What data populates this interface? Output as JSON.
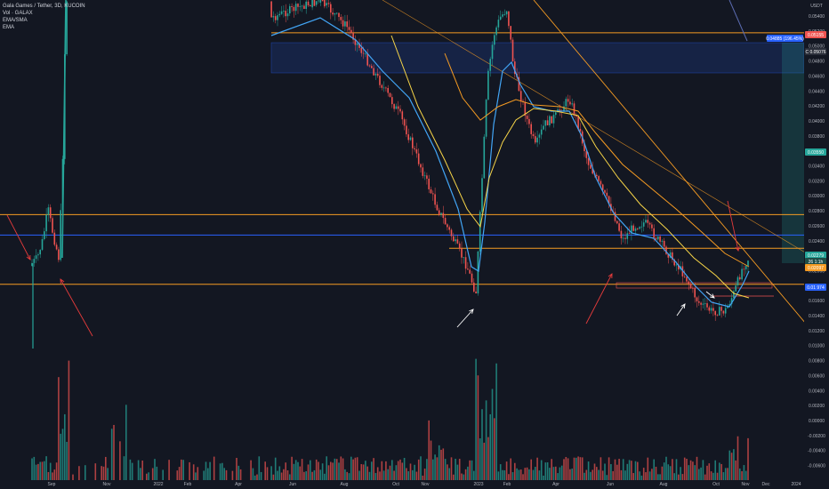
{
  "legend": {
    "symbol": "Gala Games / Tether, 3D, KUCOIN",
    "volume": "Vol · GALAX",
    "ema_sma": "EMA/SMA",
    "ema": "EMA"
  },
  "currency": "USDT",
  "colors": {
    "background": "#131722",
    "up": "#26a69a",
    "down": "#ef5350",
    "orange": "#f59b23",
    "blue": "#2962ff",
    "ema_blue": "#42a5f5",
    "sma_yellow": "#f7d548",
    "arrow_red": "#e53b3b",
    "arrow_white": "#ffffff"
  },
  "tags": {
    "price_right": "0.05155",
    "target": "0.04885 (196.45%)",
    "target_sub": "C 0.05076",
    "green_tag": "0.03550",
    "last_price": "0.02279",
    "last_sub": "26 1:1h",
    "orange_tag": "0.02097",
    "blue_level": "0.01 974"
  },
  "chart_data": {
    "type": "candlestick",
    "title": "Gala Games / Tether, 3D, KUCOIN",
    "price_axis": {
      "ticks": [
        "0.05400",
        "0.05200",
        "0.05000",
        "0.04800",
        "0.04600",
        "0.04400",
        "0.04200",
        "0.04000",
        "0.03800",
        "0.03600",
        "0.03400",
        "0.03200",
        "0.03000",
        "0.02800",
        "0.02600",
        "0.02400",
        "0.02200",
        "0.02000",
        "0.01800",
        "0.01600",
        "0.01400",
        "0.01200",
        "0.01000",
        "0.00800",
        "0.00600",
        "0.00400",
        "0.00200",
        "0.00000",
        "-0.00200",
        "-0.00400",
        "-0.00600"
      ],
      "ylim": [
        -0.0062,
        0.0557
      ]
    },
    "time_axis": {
      "ticks": [
        "Sep",
        "Nov",
        "2022",
        "Feb",
        "Apr",
        "Jun",
        "Aug",
        "Oct",
        "Nov",
        "2023",
        "Feb",
        "Apr",
        "Jun",
        "Aug",
        "Oct",
        "Nov",
        "Dec",
        "2024"
      ]
    },
    "horizontal_levels": [
      {
        "name": "resistance-orange",
        "price": 0.0209,
        "color": "#f59b23"
      },
      {
        "name": "support-blue",
        "price": 0.0175,
        "color": "#2962ff"
      },
      {
        "name": "support-orange-2",
        "price": 0.0153,
        "color": "#f59b23"
      },
      {
        "name": "bottom-orange",
        "price": 0.0093,
        "color": "#f59b23"
      },
      {
        "name": "top-orange",
        "price": 0.0512,
        "color": "#f59b23"
      }
    ],
    "series": [
      {
        "name": "price_path",
        "points": [
          [
            "Sep 2021",
            0.02
          ],
          [
            "mid Sep",
            0.024
          ],
          [
            "late Sep",
            0.04
          ],
          [
            "Oct 2021",
            0.06
          ],
          [
            "Jun 2022",
            0.058
          ],
          [
            "Aug 2022",
            0.054
          ],
          [
            "Oct 2022",
            0.042
          ],
          [
            "Nov 2022",
            0.03
          ],
          [
            "Dec 2022",
            0.017
          ],
          [
            "Jan 2023",
            0.048
          ],
          [
            "Feb 2023",
            0.052
          ],
          [
            "Mar 2023",
            0.04
          ],
          [
            "Apr 2023",
            0.044
          ],
          [
            "May 2023",
            0.034
          ],
          [
            "Jun 2023",
            0.024
          ],
          [
            "Aug 2023",
            0.016
          ],
          [
            "Oct 2023",
            0.014
          ],
          [
            "Nov 2023",
            0.0228
          ]
        ]
      }
    ]
  }
}
